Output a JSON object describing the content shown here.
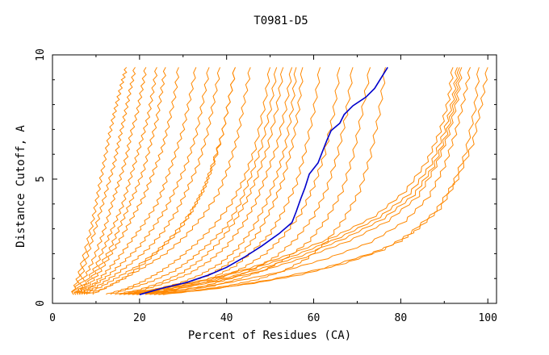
{
  "chart_data": {
    "type": "line",
    "title": "T0981-D5",
    "xlabel": "Percent of Residues (CA)",
    "ylabel": "Distance Cutoff, A",
    "xlim": [
      0,
      102
    ],
    "ylim": [
      0,
      10
    ],
    "x_ticks": [
      0,
      20,
      40,
      60,
      80,
      100
    ],
    "y_ticks": [
      0,
      5,
      10
    ],
    "grid": false,
    "legend": "none",
    "colors": {
      "highlight": "#0000cc",
      "others": "#ff8800",
      "axes": "#000000"
    },
    "highlight_series": {
      "x": [
        20,
        25,
        31,
        36,
        40,
        44,
        48,
        52,
        55,
        56,
        57,
        58,
        59,
        61,
        62,
        63,
        64,
        66,
        67,
        69,
        72,
        74,
        77
      ],
      "y": [
        0.35,
        0.6,
        0.85,
        1.15,
        1.45,
        1.85,
        2.3,
        2.8,
        3.25,
        3.7,
        4.2,
        4.65,
        5.2,
        5.65,
        6.1,
        6.55,
        6.95,
        7.25,
        7.6,
        7.95,
        8.3,
        8.65,
        9.5
      ]
    },
    "other_series": [
      {
        "x": [
          4.5,
          6,
          7.5,
          9,
          10,
          11,
          12,
          13,
          14,
          15,
          16,
          17
        ],
        "y": [
          0.35,
          1.1,
          2.1,
          3.1,
          4,
          4.9,
          5.8,
          6.7,
          7.5,
          8.2,
          8.9,
          9.5
        ]
      },
      {
        "x": [
          4.5,
          6.5,
          8,
          9.5,
          11,
          12.5,
          14,
          15,
          16,
          17,
          18,
          19
        ],
        "y": [
          0.35,
          1,
          1.9,
          2.8,
          3.7,
          4.6,
          5.5,
          6.3,
          7.1,
          7.9,
          8.7,
          9.5
        ]
      },
      {
        "x": [
          5,
          7,
          9,
          11,
          12.5,
          14,
          15.5,
          17,
          18,
          19.5,
          20.5,
          21.5
        ],
        "y": [
          0.35,
          0.9,
          1.6,
          2.5,
          3.3,
          4.2,
          5,
          5.9,
          6.8,
          7.7,
          8.6,
          9.5
        ]
      },
      {
        "x": [
          5,
          7.5,
          10,
          12,
          14,
          16,
          17.5,
          19,
          20.5,
          22,
          23,
          24
        ],
        "y": [
          0.35,
          0.8,
          1.5,
          2.3,
          3.1,
          3.9,
          4.8,
          5.7,
          6.6,
          7.5,
          8.5,
          9.5
        ]
      },
      {
        "x": [
          5.5,
          8,
          10.5,
          13,
          15,
          17,
          19,
          21,
          22.5,
          24,
          25,
          26
        ],
        "y": [
          0.35,
          0.8,
          1.4,
          2.1,
          2.9,
          3.7,
          4.5,
          5.4,
          6.4,
          7.4,
          8.5,
          9.5
        ]
      },
      {
        "x": [
          5.5,
          8.5,
          11,
          13.5,
          16,
          18.5,
          21,
          23,
          25,
          26.5,
          28,
          29
        ],
        "y": [
          0.35,
          0.75,
          1.3,
          2,
          2.7,
          3.5,
          4.3,
          5.2,
          6.1,
          7.1,
          8.3,
          9.5
        ]
      },
      {
        "x": [
          6,
          9,
          12,
          15,
          18,
          21,
          24,
          26,
          28,
          30,
          31.5,
          33
        ],
        "y": [
          0.35,
          0.7,
          1.2,
          1.8,
          2.5,
          3.2,
          4,
          4.9,
          5.9,
          7,
          8.2,
          9.5
        ]
      },
      {
        "x": [
          6,
          9.5,
          13,
          16.5,
          20,
          23,
          26,
          28.5,
          31,
          33,
          34.5,
          36
        ],
        "y": [
          0.35,
          0.7,
          1.15,
          1.7,
          2.3,
          3,
          3.8,
          4.7,
          5.7,
          6.8,
          8.1,
          9.5
        ]
      },
      {
        "x": [
          6.5,
          10,
          14,
          18,
          22,
          25.5,
          28.5,
          31,
          33.5,
          35.5,
          37,
          38.5
        ],
        "y": [
          0.35,
          0.65,
          1.1,
          1.6,
          2.2,
          2.9,
          3.7,
          4.6,
          5.6,
          6.8,
          8.1,
          9.5
        ]
      },
      {
        "x": [
          7,
          11,
          15,
          19.5,
          24,
          28,
          31.5,
          34.5,
          37,
          39,
          40.5,
          42
        ],
        "y": [
          0.35,
          0.65,
          1.05,
          1.5,
          2.1,
          2.8,
          3.6,
          4.5,
          5.6,
          6.8,
          8.1,
          9.5
        ]
      },
      {
        "x": [
          7.5,
          12,
          16.5,
          21,
          26,
          30.5,
          34.5,
          38,
          40.5,
          42.5,
          44,
          45.5
        ],
        "y": [
          0.35,
          0.6,
          1,
          1.45,
          2,
          2.7,
          3.5,
          4.4,
          5.5,
          6.7,
          8.1,
          9.5
        ]
      },
      {
        "x": [
          9,
          13,
          17,
          21,
          25,
          29,
          32,
          35,
          37,
          39,
          40.5,
          42
        ],
        "y": [
          0.35,
          0.7,
          1.1,
          1.6,
          2.2,
          2.9,
          3.7,
          4.7,
          5.7,
          6.8,
          8.1,
          9.5
        ]
      },
      {
        "x": [
          12,
          17,
          21,
          25,
          29,
          33,
          37,
          41,
          44,
          46.5,
          48.5,
          50
        ],
        "y": [
          0.35,
          0.6,
          0.9,
          1.3,
          1.8,
          2.4,
          3.1,
          4,
          5,
          6.2,
          7.8,
          9.5
        ]
      },
      {
        "x": [
          13,
          18,
          23,
          28,
          32,
          36,
          40,
          43,
          45.5,
          48,
          50,
          51.5
        ],
        "y": [
          0.35,
          0.6,
          0.9,
          1.3,
          1.8,
          2.4,
          3.1,
          4,
          5.1,
          6.3,
          7.8,
          9.5
        ]
      },
      {
        "x": [
          14,
          20,
          25,
          30,
          34,
          38,
          41.5,
          44.5,
          47,
          49.5,
          51.5,
          53
        ],
        "y": [
          0.35,
          0.55,
          0.85,
          1.25,
          1.75,
          2.4,
          3.2,
          4.1,
          5.1,
          6.3,
          7.8,
          9.5
        ]
      },
      {
        "x": [
          15,
          21,
          26.5,
          31.5,
          36,
          40,
          43.5,
          46.5,
          49,
          51.5,
          53.5,
          55
        ],
        "y": [
          0.35,
          0.55,
          0.85,
          1.2,
          1.7,
          2.3,
          3.1,
          4,
          5.1,
          6.3,
          7.8,
          9.5
        ]
      },
      {
        "x": [
          16,
          23,
          29,
          34,
          38.5,
          42.5,
          46,
          49,
          51.5,
          53.5,
          55,
          56
        ],
        "y": [
          0.35,
          0.55,
          0.8,
          1.15,
          1.6,
          2.2,
          3,
          4,
          5.1,
          6.3,
          7.8,
          9.5
        ]
      },
      {
        "x": [
          17,
          24,
          30,
          35.5,
          40,
          44,
          47.5,
          50.5,
          53,
          55,
          56.5,
          57.5
        ],
        "y": [
          0.35,
          0.5,
          0.8,
          1.1,
          1.55,
          2.1,
          2.9,
          3.9,
          5,
          6.3,
          7.8,
          9.5
        ]
      },
      {
        "x": [
          18,
          25,
          31.5,
          37,
          42,
          46,
          50,
          53,
          56,
          58,
          60,
          61.5
        ],
        "y": [
          0.35,
          0.5,
          0.75,
          1.05,
          1.5,
          2.1,
          2.8,
          3.7,
          4.8,
          6.1,
          7.7,
          9.5
        ]
      },
      {
        "x": [
          19,
          26,
          33,
          39,
          44,
          49,
          53,
          57,
          60,
          62.5,
          64.5,
          66
        ],
        "y": [
          0.35,
          0.5,
          0.75,
          1.05,
          1.45,
          2,
          2.7,
          3.6,
          4.7,
          6,
          7.6,
          9.5
        ]
      },
      {
        "x": [
          21,
          28,
          35,
          41,
          46.5,
          51.5,
          56,
          60,
          63,
          65.5,
          67.5,
          69
        ],
        "y": [
          0.35,
          0.5,
          0.7,
          1,
          1.4,
          1.9,
          2.6,
          3.5,
          4.6,
          6,
          7.6,
          9.5
        ]
      },
      {
        "x": [
          22,
          30,
          37,
          43,
          49,
          54,
          59,
          63,
          66.5,
          69,
          71,
          73
        ],
        "y": [
          0.35,
          0.5,
          0.7,
          1,
          1.35,
          1.85,
          2.5,
          3.4,
          4.5,
          5.9,
          7.6,
          9.5
        ]
      },
      {
        "x": [
          23,
          32,
          40,
          47,
          53,
          58.5,
          63,
          67,
          70.5,
          73,
          75,
          76.5
        ],
        "y": [
          0.35,
          0.5,
          0.7,
          0.95,
          1.3,
          1.8,
          2.5,
          3.4,
          4.5,
          5.9,
          7.6,
          9.5
        ]
      },
      {
        "x": [
          15,
          25,
          35,
          45,
          55,
          65,
          74,
          81,
          86,
          89,
          91,
          92
        ],
        "y": [
          0.35,
          0.6,
          0.95,
          1.4,
          2,
          2.7,
          3.5,
          4.5,
          5.7,
          6.9,
          8.2,
          9.5
        ]
      },
      {
        "x": [
          16,
          26,
          36,
          46,
          56,
          66,
          75,
          82,
          87,
          90,
          92,
          93
        ],
        "y": [
          0.35,
          0.6,
          0.95,
          1.4,
          1.95,
          2.65,
          3.45,
          4.4,
          5.6,
          6.9,
          8.2,
          9.5
        ]
      },
      {
        "x": [
          17,
          27,
          37,
          47,
          57,
          67,
          76,
          83,
          87.5,
          90.5,
          92.5,
          93.5
        ],
        "y": [
          0.35,
          0.6,
          0.9,
          1.35,
          1.9,
          2.6,
          3.4,
          4.35,
          5.5,
          6.8,
          8.2,
          9.5
        ]
      },
      {
        "x": [
          18,
          28,
          38,
          48,
          58,
          68,
          77,
          84,
          88,
          91,
          93,
          94
        ],
        "y": [
          0.35,
          0.55,
          0.9,
          1.3,
          1.85,
          2.5,
          3.3,
          4.3,
          5.5,
          6.8,
          8.2,
          9.5
        ]
      },
      {
        "x": [
          19,
          30,
          41,
          52,
          63,
          73,
          81,
          86.5,
          90,
          92.5,
          94.5,
          96
        ],
        "y": [
          0.35,
          0.55,
          0.85,
          1.25,
          1.8,
          2.45,
          3.3,
          4.3,
          5.5,
          6.8,
          8.2,
          9.5
        ]
      },
      {
        "x": [
          24,
          35,
          46,
          57,
          67,
          76,
          82,
          88,
          92,
          95,
          97,
          98
        ],
        "y": [
          0.35,
          0.55,
          0.8,
          1.15,
          1.6,
          2.15,
          2.8,
          3.7,
          4.8,
          6.1,
          7.8,
          9.5
        ]
      },
      {
        "x": [
          25,
          38,
          50,
          62,
          73,
          80,
          84,
          89,
          93,
          96.5,
          98.5,
          100
        ],
        "y": [
          0.35,
          0.6,
          0.95,
          1.4,
          2,
          2.5,
          3,
          3.8,
          5,
          6.4,
          8,
          9.5
        ]
      }
    ]
  }
}
